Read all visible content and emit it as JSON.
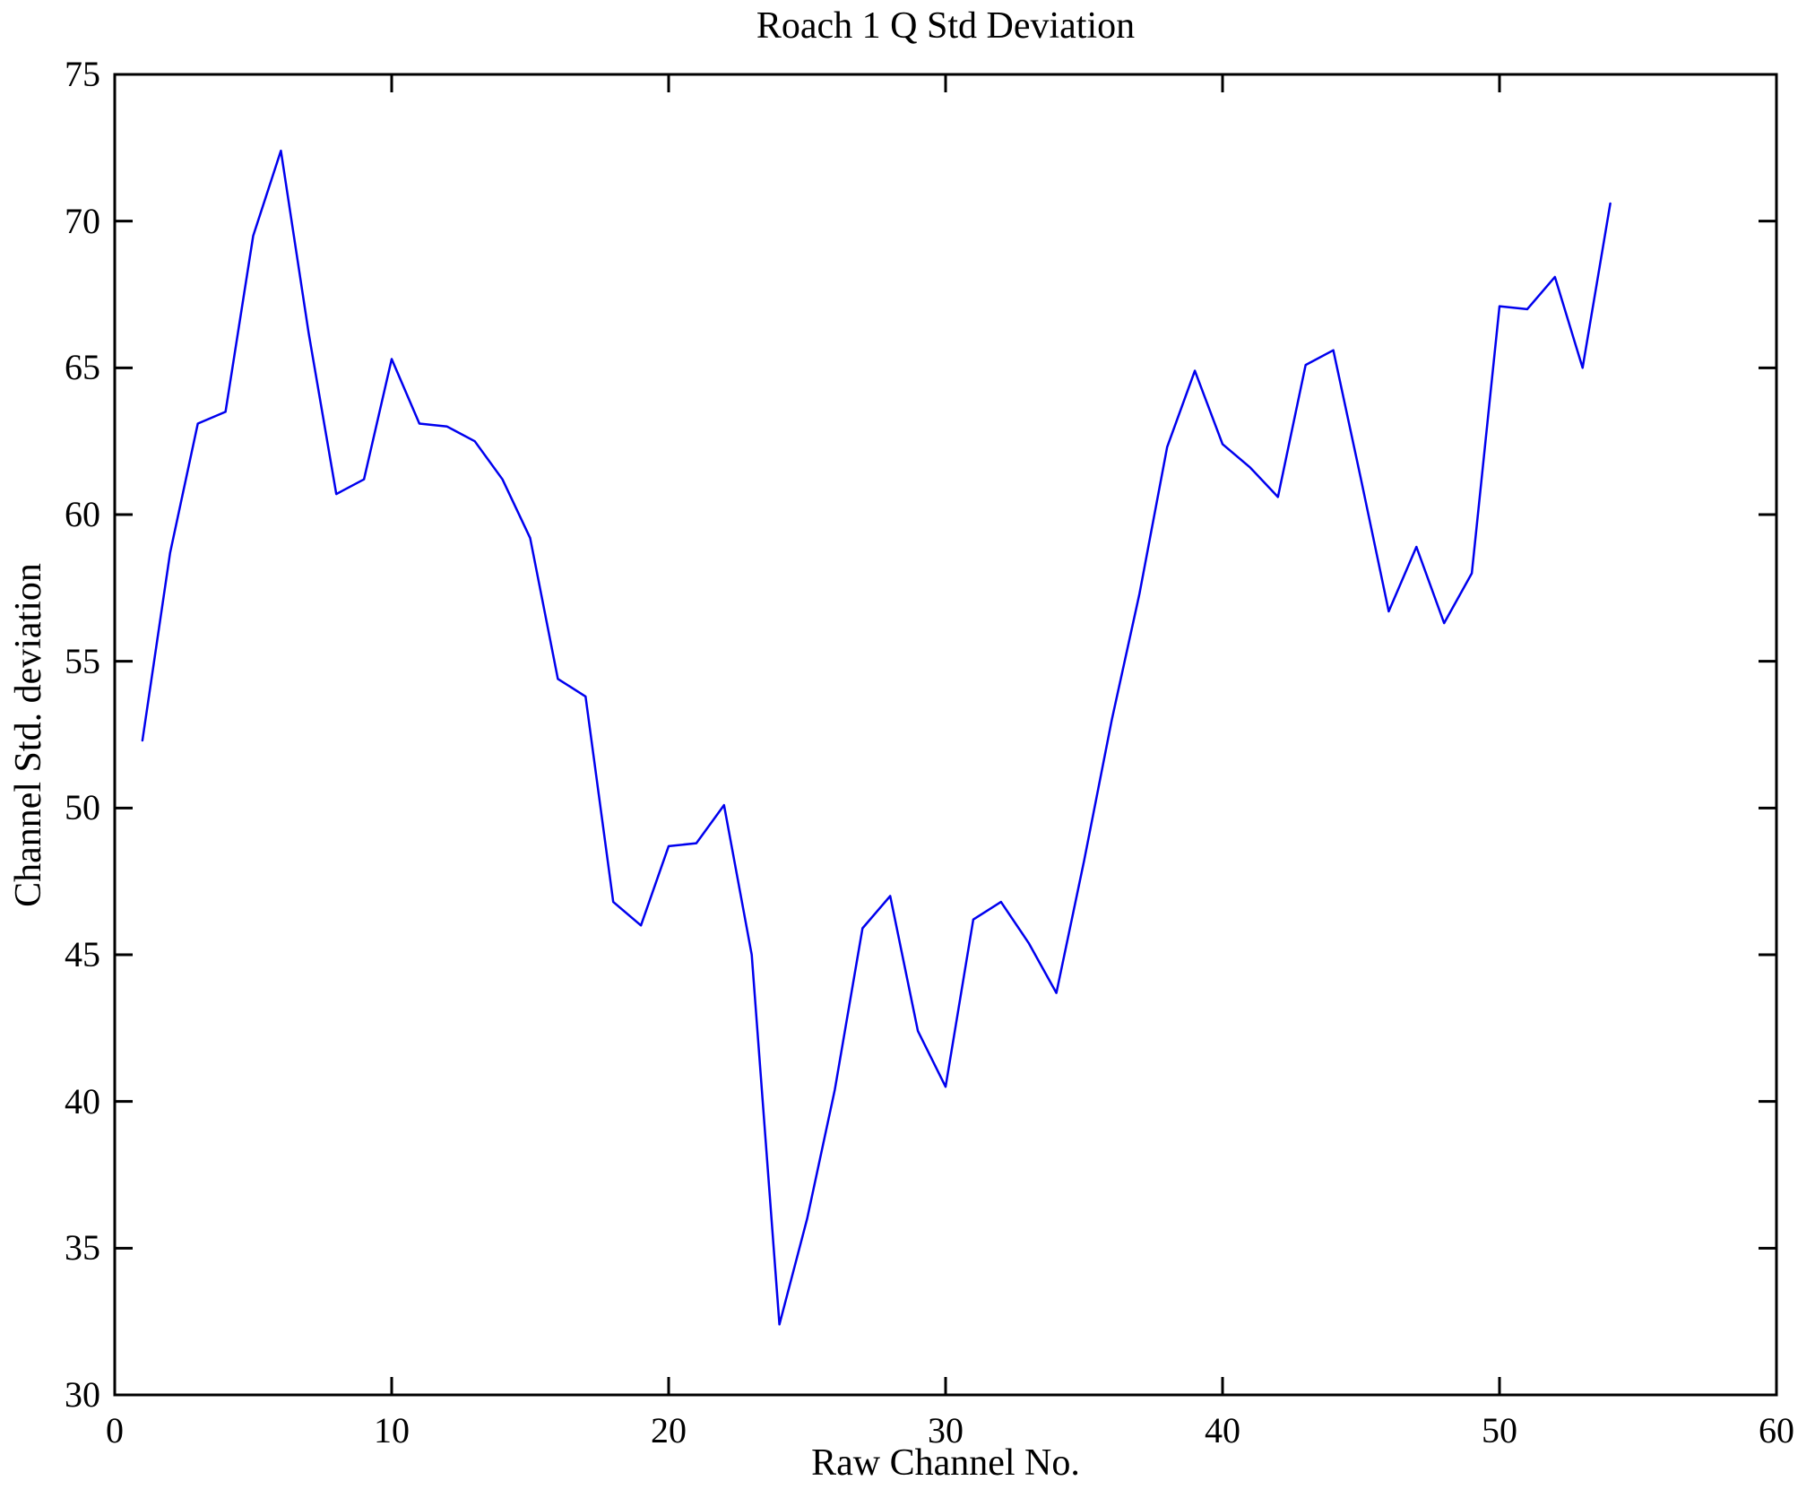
{
  "chart_data": {
    "type": "line",
    "title": "Roach 1 Q Std Deviation",
    "xlabel": "Raw Channel No.",
    "ylabel": "Channel Std. deviation",
    "xlim": [
      0,
      60
    ],
    "ylim": [
      30,
      75
    ],
    "x_ticks": [
      0,
      10,
      20,
      30,
      40,
      50,
      60
    ],
    "y_ticks": [
      30,
      35,
      40,
      45,
      50,
      55,
      60,
      65,
      70,
      75
    ],
    "grid": false,
    "legend": "none",
    "line_color": "#0000EE",
    "axis_color": "#000000",
    "series": [
      {
        "name": "Channel Std. deviation",
        "x": [
          1,
          2,
          3,
          4,
          5,
          6,
          7,
          8,
          9,
          10,
          11,
          12,
          13,
          14,
          15,
          16,
          17,
          18,
          19,
          20,
          21,
          22,
          23,
          24,
          25,
          26,
          27,
          28,
          29,
          30,
          31,
          32,
          33,
          34,
          35,
          36,
          37,
          38,
          39,
          40,
          41,
          42,
          43,
          44,
          45,
          46,
          47,
          48,
          49,
          50,
          51,
          52,
          53,
          54
        ],
        "y": [
          52.3,
          58.7,
          63.1,
          63.5,
          69.5,
          72.4,
          66.2,
          60.7,
          61.2,
          65.3,
          63.1,
          63.0,
          62.5,
          61.2,
          59.2,
          54.4,
          53.8,
          46.8,
          46.0,
          48.7,
          48.8,
          50.1,
          45.0,
          32.4,
          36.0,
          40.4,
          45.9,
          47.0,
          42.4,
          40.5,
          46.2,
          46.8,
          45.4,
          43.7,
          48.2,
          53.0,
          57.3,
          62.3,
          64.9,
          62.4,
          61.6,
          60.6,
          65.1,
          65.6,
          61.2,
          56.7,
          58.9,
          56.3,
          58.0,
          67.1,
          67.0,
          68.1,
          65.0,
          70.6
        ]
      }
    ]
  }
}
